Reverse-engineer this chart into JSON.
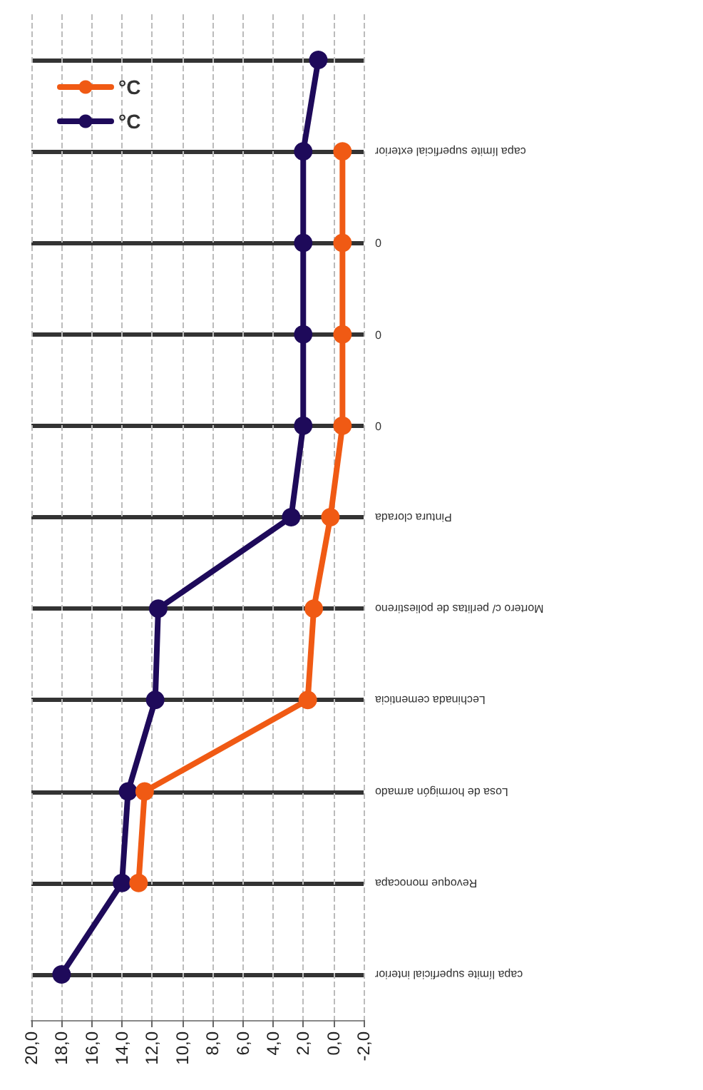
{
  "chart_data": {
    "type": "line",
    "categories": [
      null,
      "capa límite superficial exterior",
      "0",
      "0",
      "0",
      "Pintura clorada",
      "Mortero c/ perlitas de poliestireno",
      "Lechinada cementicia",
      "Losa de hormigón armado",
      "Revoque monocapa",
      "capa límite superficial interior"
    ],
    "series": [
      {
        "name": "°C",
        "color": "#1e0a5a",
        "values": [
          1.0,
          2.0,
          2.0,
          2.0,
          2.0,
          2.8,
          11.6,
          11.8,
          13.6,
          14.0,
          18.0
        ]
      },
      {
        "name": "°C",
        "color": "#f05a14",
        "values": [
          null,
          -0.6,
          -0.6,
          -0.6,
          -0.6,
          0.2,
          1.3,
          1.7,
          12.5,
          12.9,
          null
        ]
      }
    ],
    "orientation": "horizontal",
    "xlim": [
      20,
      -2
    ],
    "xticks": [
      {
        "value": 20,
        "label": "20,0"
      },
      {
        "value": 18,
        "label": "18,0"
      },
      {
        "value": 16,
        "label": "16,0"
      },
      {
        "value": 14,
        "label": "14,0"
      },
      {
        "value": 12,
        "label": "12,0"
      },
      {
        "value": 10,
        "label": "10,0"
      },
      {
        "value": 8,
        "label": "8,0"
      },
      {
        "value": 6,
        "label": "6,0"
      },
      {
        "value": 4,
        "label": "4,0"
      },
      {
        "value": 2,
        "label": "2,0"
      },
      {
        "value": 0,
        "label": "0,0"
      },
      {
        "value": -2,
        "label": "-2,0"
      }
    ],
    "grid": true,
    "legend": "top left",
    "marker": "circle",
    "line_style": "solid"
  }
}
